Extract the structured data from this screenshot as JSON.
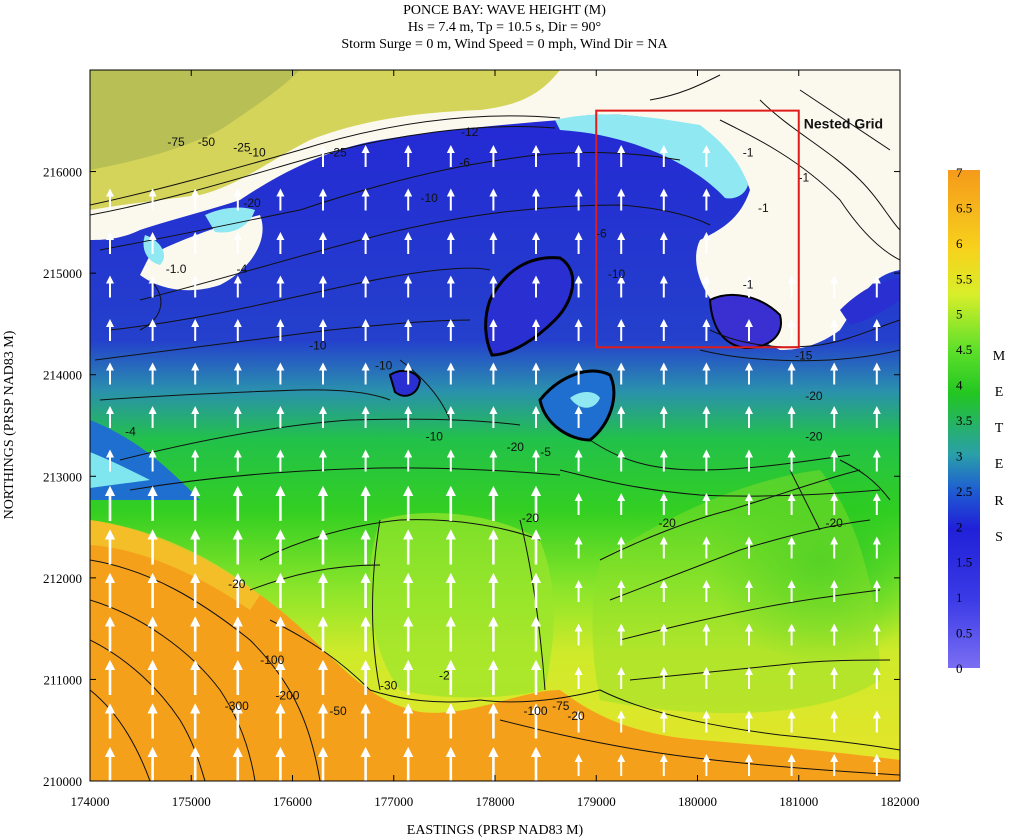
{
  "title": {
    "line1": "PONCE BAY: WAVE HEIGHT (M)",
    "line2": "Hs = 7.4 m, Tp = 10.5 s, Dir = 90°",
    "line3": "Storm Surge = 0 m, Wind Speed = 0 mph, Wind Dir = NA"
  },
  "axes": {
    "xlabel": "EASTINGS (PRSP NAD83 M)",
    "ylabel": "NORTHINGS (PRSP NAD83 M)",
    "xlim": [
      174000,
      182000
    ],
    "ylim": [
      210000,
      217000
    ],
    "xticks": [
      174000,
      175000,
      176000,
      177000,
      178000,
      179000,
      180000,
      181000,
      182000
    ],
    "yticks": [
      210000,
      211000,
      212000,
      213000,
      214000,
      215000,
      216000
    ]
  },
  "nested_grid": {
    "label": "Nested Grid",
    "x_range": [
      179000,
      181000
    ],
    "y_range": [
      214270,
      216600
    ],
    "color": "#e01b1b"
  },
  "colorbar": {
    "ticks": [
      "7",
      "6.5",
      "6",
      "5.5",
      "5",
      "4.5",
      "4",
      "3.5",
      "3",
      "2.5",
      "2",
      "1.5",
      "1",
      "0.5",
      "0"
    ],
    "unit_letters": [
      "M",
      "E",
      "T",
      "E",
      "R",
      "S"
    ],
    "colors": [
      "#7a6ef2",
      "#2323d9",
      "#1f5fd0",
      "#2aa0a8",
      "#22c422",
      "#7fe12a",
      "#e6ee2a",
      "#f5b31b",
      "#f59a1b"
    ]
  },
  "contour_labels": [
    {
      "text": "-75",
      "x": 174850,
      "y": 216250
    },
    {
      "text": "-50",
      "x": 175150,
      "y": 216250
    },
    {
      "text": "-25",
      "x": 175500,
      "y": 216200
    },
    {
      "text": "-10",
      "x": 175650,
      "y": 216150
    },
    {
      "text": "-25",
      "x": 176450,
      "y": 216150
    },
    {
      "text": "-12",
      "x": 177750,
      "y": 216350
    },
    {
      "text": "-6",
      "x": 177700,
      "y": 216050
    },
    {
      "text": "-10",
      "x": 177350,
      "y": 215700
    },
    {
      "text": "-20",
      "x": 175600,
      "y": 215650
    },
    {
      "text": "-1.0",
      "x": 174850,
      "y": 215000
    },
    {
      "text": "-1",
      "x": 180500,
      "y": 216150
    },
    {
      "text": "-1",
      "x": 180650,
      "y": 215600
    },
    {
      "text": "-1",
      "x": 181050,
      "y": 215900
    },
    {
      "text": "-1",
      "x": 180500,
      "y": 214850
    },
    {
      "text": "-10",
      "x": 179200,
      "y": 214950
    },
    {
      "text": "-6",
      "x": 179050,
      "y": 215350
    },
    {
      "text": "-4",
      "x": 175500,
      "y": 215000
    },
    {
      "text": "-10",
      "x": 176250,
      "y": 214250
    },
    {
      "text": "-10",
      "x": 176900,
      "y": 214050
    },
    {
      "text": "-15",
      "x": 181050,
      "y": 214150
    },
    {
      "text": "-20",
      "x": 181150,
      "y": 213750
    },
    {
      "text": "-20",
      "x": 181150,
      "y": 213350
    },
    {
      "text": "-4",
      "x": 174400,
      "y": 213400
    },
    {
      "text": "-10",
      "x": 177400,
      "y": 213350
    },
    {
      "text": "-20",
      "x": 178200,
      "y": 213250
    },
    {
      "text": "-20",
      "x": 178350,
      "y": 212550
    },
    {
      "text": "-20",
      "x": 179700,
      "y": 212500
    },
    {
      "text": "-20",
      "x": 181350,
      "y": 212500
    },
    {
      "text": "-5",
      "x": 178500,
      "y": 213200
    },
    {
      "text": "-20",
      "x": 175450,
      "y": 211900
    },
    {
      "text": "-2",
      "x": 177500,
      "y": 211000
    },
    {
      "text": "-300",
      "x": 175450,
      "y": 210700
    },
    {
      "text": "-200",
      "x": 175950,
      "y": 210800
    },
    {
      "text": "-100",
      "x": 175800,
      "y": 211150
    },
    {
      "text": "-50",
      "x": 176450,
      "y": 210650
    },
    {
      "text": "-100",
      "x": 178400,
      "y": 210650
    },
    {
      "text": "-75",
      "x": 178650,
      "y": 210700
    },
    {
      "text": "-20",
      "x": 178800,
      "y": 210600
    },
    {
      "text": "-30",
      "x": 176950,
      "y": 210900
    }
  ]
}
